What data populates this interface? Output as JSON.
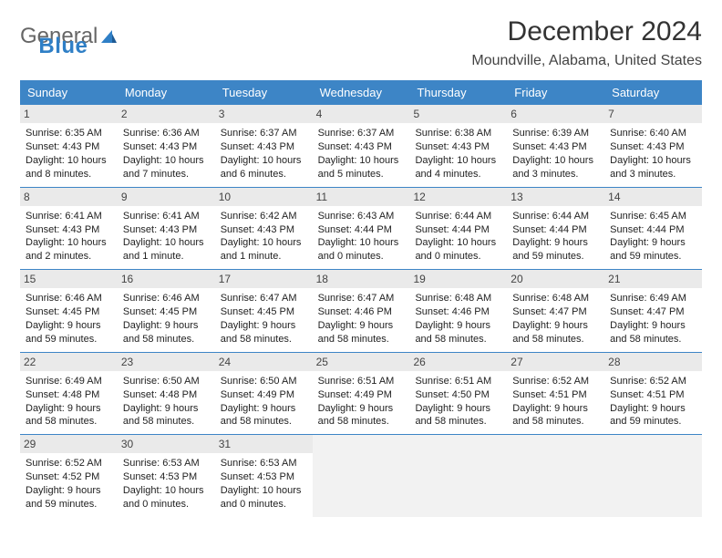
{
  "logo": {
    "text1": "General",
    "text2": "Blue"
  },
  "title": "December 2024",
  "location": "Moundville, Alabama, United States",
  "colors": {
    "header_bg": "#3d85c6",
    "header_text": "#ffffff",
    "daynum_bg": "#eaeaea",
    "empty_bg": "#f2f2f2",
    "rule": "#3d85c6",
    "text": "#222222"
  },
  "calendar": {
    "day_names": [
      "Sunday",
      "Monday",
      "Tuesday",
      "Wednesday",
      "Thursday",
      "Friday",
      "Saturday"
    ],
    "weeks": [
      [
        {
          "num": "1",
          "sunrise": "Sunrise: 6:35 AM",
          "sunset": "Sunset: 4:43 PM",
          "daylight": "Daylight: 10 hours and 8 minutes."
        },
        {
          "num": "2",
          "sunrise": "Sunrise: 6:36 AM",
          "sunset": "Sunset: 4:43 PM",
          "daylight": "Daylight: 10 hours and 7 minutes."
        },
        {
          "num": "3",
          "sunrise": "Sunrise: 6:37 AM",
          "sunset": "Sunset: 4:43 PM",
          "daylight": "Daylight: 10 hours and 6 minutes."
        },
        {
          "num": "4",
          "sunrise": "Sunrise: 6:37 AM",
          "sunset": "Sunset: 4:43 PM",
          "daylight": "Daylight: 10 hours and 5 minutes."
        },
        {
          "num": "5",
          "sunrise": "Sunrise: 6:38 AM",
          "sunset": "Sunset: 4:43 PM",
          "daylight": "Daylight: 10 hours and 4 minutes."
        },
        {
          "num": "6",
          "sunrise": "Sunrise: 6:39 AM",
          "sunset": "Sunset: 4:43 PM",
          "daylight": "Daylight: 10 hours and 3 minutes."
        },
        {
          "num": "7",
          "sunrise": "Sunrise: 6:40 AM",
          "sunset": "Sunset: 4:43 PM",
          "daylight": "Daylight: 10 hours and 3 minutes."
        }
      ],
      [
        {
          "num": "8",
          "sunrise": "Sunrise: 6:41 AM",
          "sunset": "Sunset: 4:43 PM",
          "daylight": "Daylight: 10 hours and 2 minutes."
        },
        {
          "num": "9",
          "sunrise": "Sunrise: 6:41 AM",
          "sunset": "Sunset: 4:43 PM",
          "daylight": "Daylight: 10 hours and 1 minute."
        },
        {
          "num": "10",
          "sunrise": "Sunrise: 6:42 AM",
          "sunset": "Sunset: 4:43 PM",
          "daylight": "Daylight: 10 hours and 1 minute."
        },
        {
          "num": "11",
          "sunrise": "Sunrise: 6:43 AM",
          "sunset": "Sunset: 4:44 PM",
          "daylight": "Daylight: 10 hours and 0 minutes."
        },
        {
          "num": "12",
          "sunrise": "Sunrise: 6:44 AM",
          "sunset": "Sunset: 4:44 PM",
          "daylight": "Daylight: 10 hours and 0 minutes."
        },
        {
          "num": "13",
          "sunrise": "Sunrise: 6:44 AM",
          "sunset": "Sunset: 4:44 PM",
          "daylight": "Daylight: 9 hours and 59 minutes."
        },
        {
          "num": "14",
          "sunrise": "Sunrise: 6:45 AM",
          "sunset": "Sunset: 4:44 PM",
          "daylight": "Daylight: 9 hours and 59 minutes."
        }
      ],
      [
        {
          "num": "15",
          "sunrise": "Sunrise: 6:46 AM",
          "sunset": "Sunset: 4:45 PM",
          "daylight": "Daylight: 9 hours and 59 minutes."
        },
        {
          "num": "16",
          "sunrise": "Sunrise: 6:46 AM",
          "sunset": "Sunset: 4:45 PM",
          "daylight": "Daylight: 9 hours and 58 minutes."
        },
        {
          "num": "17",
          "sunrise": "Sunrise: 6:47 AM",
          "sunset": "Sunset: 4:45 PM",
          "daylight": "Daylight: 9 hours and 58 minutes."
        },
        {
          "num": "18",
          "sunrise": "Sunrise: 6:47 AM",
          "sunset": "Sunset: 4:46 PM",
          "daylight": "Daylight: 9 hours and 58 minutes."
        },
        {
          "num": "19",
          "sunrise": "Sunrise: 6:48 AM",
          "sunset": "Sunset: 4:46 PM",
          "daylight": "Daylight: 9 hours and 58 minutes."
        },
        {
          "num": "20",
          "sunrise": "Sunrise: 6:48 AM",
          "sunset": "Sunset: 4:47 PM",
          "daylight": "Daylight: 9 hours and 58 minutes."
        },
        {
          "num": "21",
          "sunrise": "Sunrise: 6:49 AM",
          "sunset": "Sunset: 4:47 PM",
          "daylight": "Daylight: 9 hours and 58 minutes."
        }
      ],
      [
        {
          "num": "22",
          "sunrise": "Sunrise: 6:49 AM",
          "sunset": "Sunset: 4:48 PM",
          "daylight": "Daylight: 9 hours and 58 minutes."
        },
        {
          "num": "23",
          "sunrise": "Sunrise: 6:50 AM",
          "sunset": "Sunset: 4:48 PM",
          "daylight": "Daylight: 9 hours and 58 minutes."
        },
        {
          "num": "24",
          "sunrise": "Sunrise: 6:50 AM",
          "sunset": "Sunset: 4:49 PM",
          "daylight": "Daylight: 9 hours and 58 minutes."
        },
        {
          "num": "25",
          "sunrise": "Sunrise: 6:51 AM",
          "sunset": "Sunset: 4:49 PM",
          "daylight": "Daylight: 9 hours and 58 minutes."
        },
        {
          "num": "26",
          "sunrise": "Sunrise: 6:51 AM",
          "sunset": "Sunset: 4:50 PM",
          "daylight": "Daylight: 9 hours and 58 minutes."
        },
        {
          "num": "27",
          "sunrise": "Sunrise: 6:52 AM",
          "sunset": "Sunset: 4:51 PM",
          "daylight": "Daylight: 9 hours and 58 minutes."
        },
        {
          "num": "28",
          "sunrise": "Sunrise: 6:52 AM",
          "sunset": "Sunset: 4:51 PM",
          "daylight": "Daylight: 9 hours and 59 minutes."
        }
      ],
      [
        {
          "num": "29",
          "sunrise": "Sunrise: 6:52 AM",
          "sunset": "Sunset: 4:52 PM",
          "daylight": "Daylight: 9 hours and 59 minutes."
        },
        {
          "num": "30",
          "sunrise": "Sunrise: 6:53 AM",
          "sunset": "Sunset: 4:53 PM",
          "daylight": "Daylight: 10 hours and 0 minutes."
        },
        {
          "num": "31",
          "sunrise": "Sunrise: 6:53 AM",
          "sunset": "Sunset: 4:53 PM",
          "daylight": "Daylight: 10 hours and 0 minutes."
        },
        {
          "empty": true
        },
        {
          "empty": true
        },
        {
          "empty": true
        },
        {
          "empty": true
        }
      ]
    ]
  }
}
